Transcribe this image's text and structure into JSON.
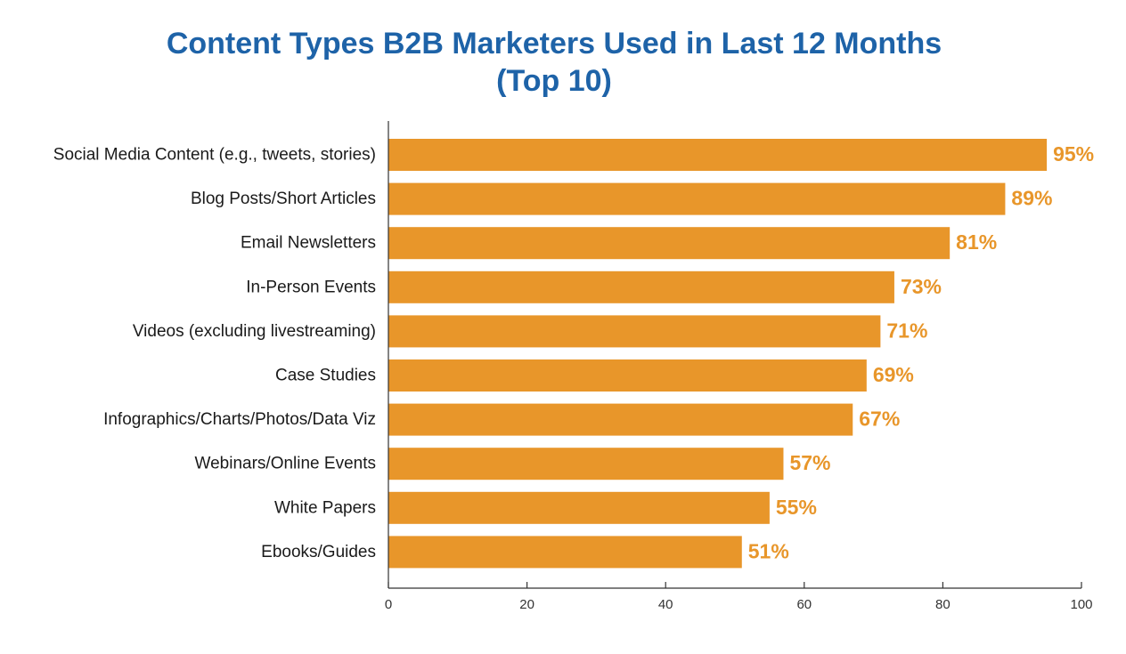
{
  "chart_data": {
    "type": "bar",
    "orientation": "horizontal",
    "title_lines": [
      "Content Types B2B Marketers Used in Last 12 Months",
      "(Top 10)"
    ],
    "categories": [
      "Social Media Content (e.g., tweets, stories)",
      "Blog Posts/Short Articles",
      "Email Newsletters",
      "In-Person Events",
      "Videos (excluding livestreaming)",
      "Case Studies",
      "Infographics/Charts/Photos/Data Viz",
      "Webinars/Online Events",
      "White Papers",
      "Ebooks/Guides"
    ],
    "values": [
      95,
      89,
      81,
      73,
      71,
      69,
      67,
      57,
      55,
      51
    ],
    "value_labels": [
      "95%",
      "89%",
      "81%",
      "73%",
      "71%",
      "69%",
      "67%",
      "57%",
      "55%",
      "51%"
    ],
    "xlim": [
      0,
      100
    ],
    "x_ticks": [
      0,
      20,
      40,
      60,
      80,
      100
    ],
    "x_tick_labels": [
      "0",
      "20",
      "40",
      "60",
      "80",
      "100"
    ],
    "bar_color": "#e8962a",
    "title_color": "#1e63a8",
    "grid": false,
    "legend": "none"
  }
}
